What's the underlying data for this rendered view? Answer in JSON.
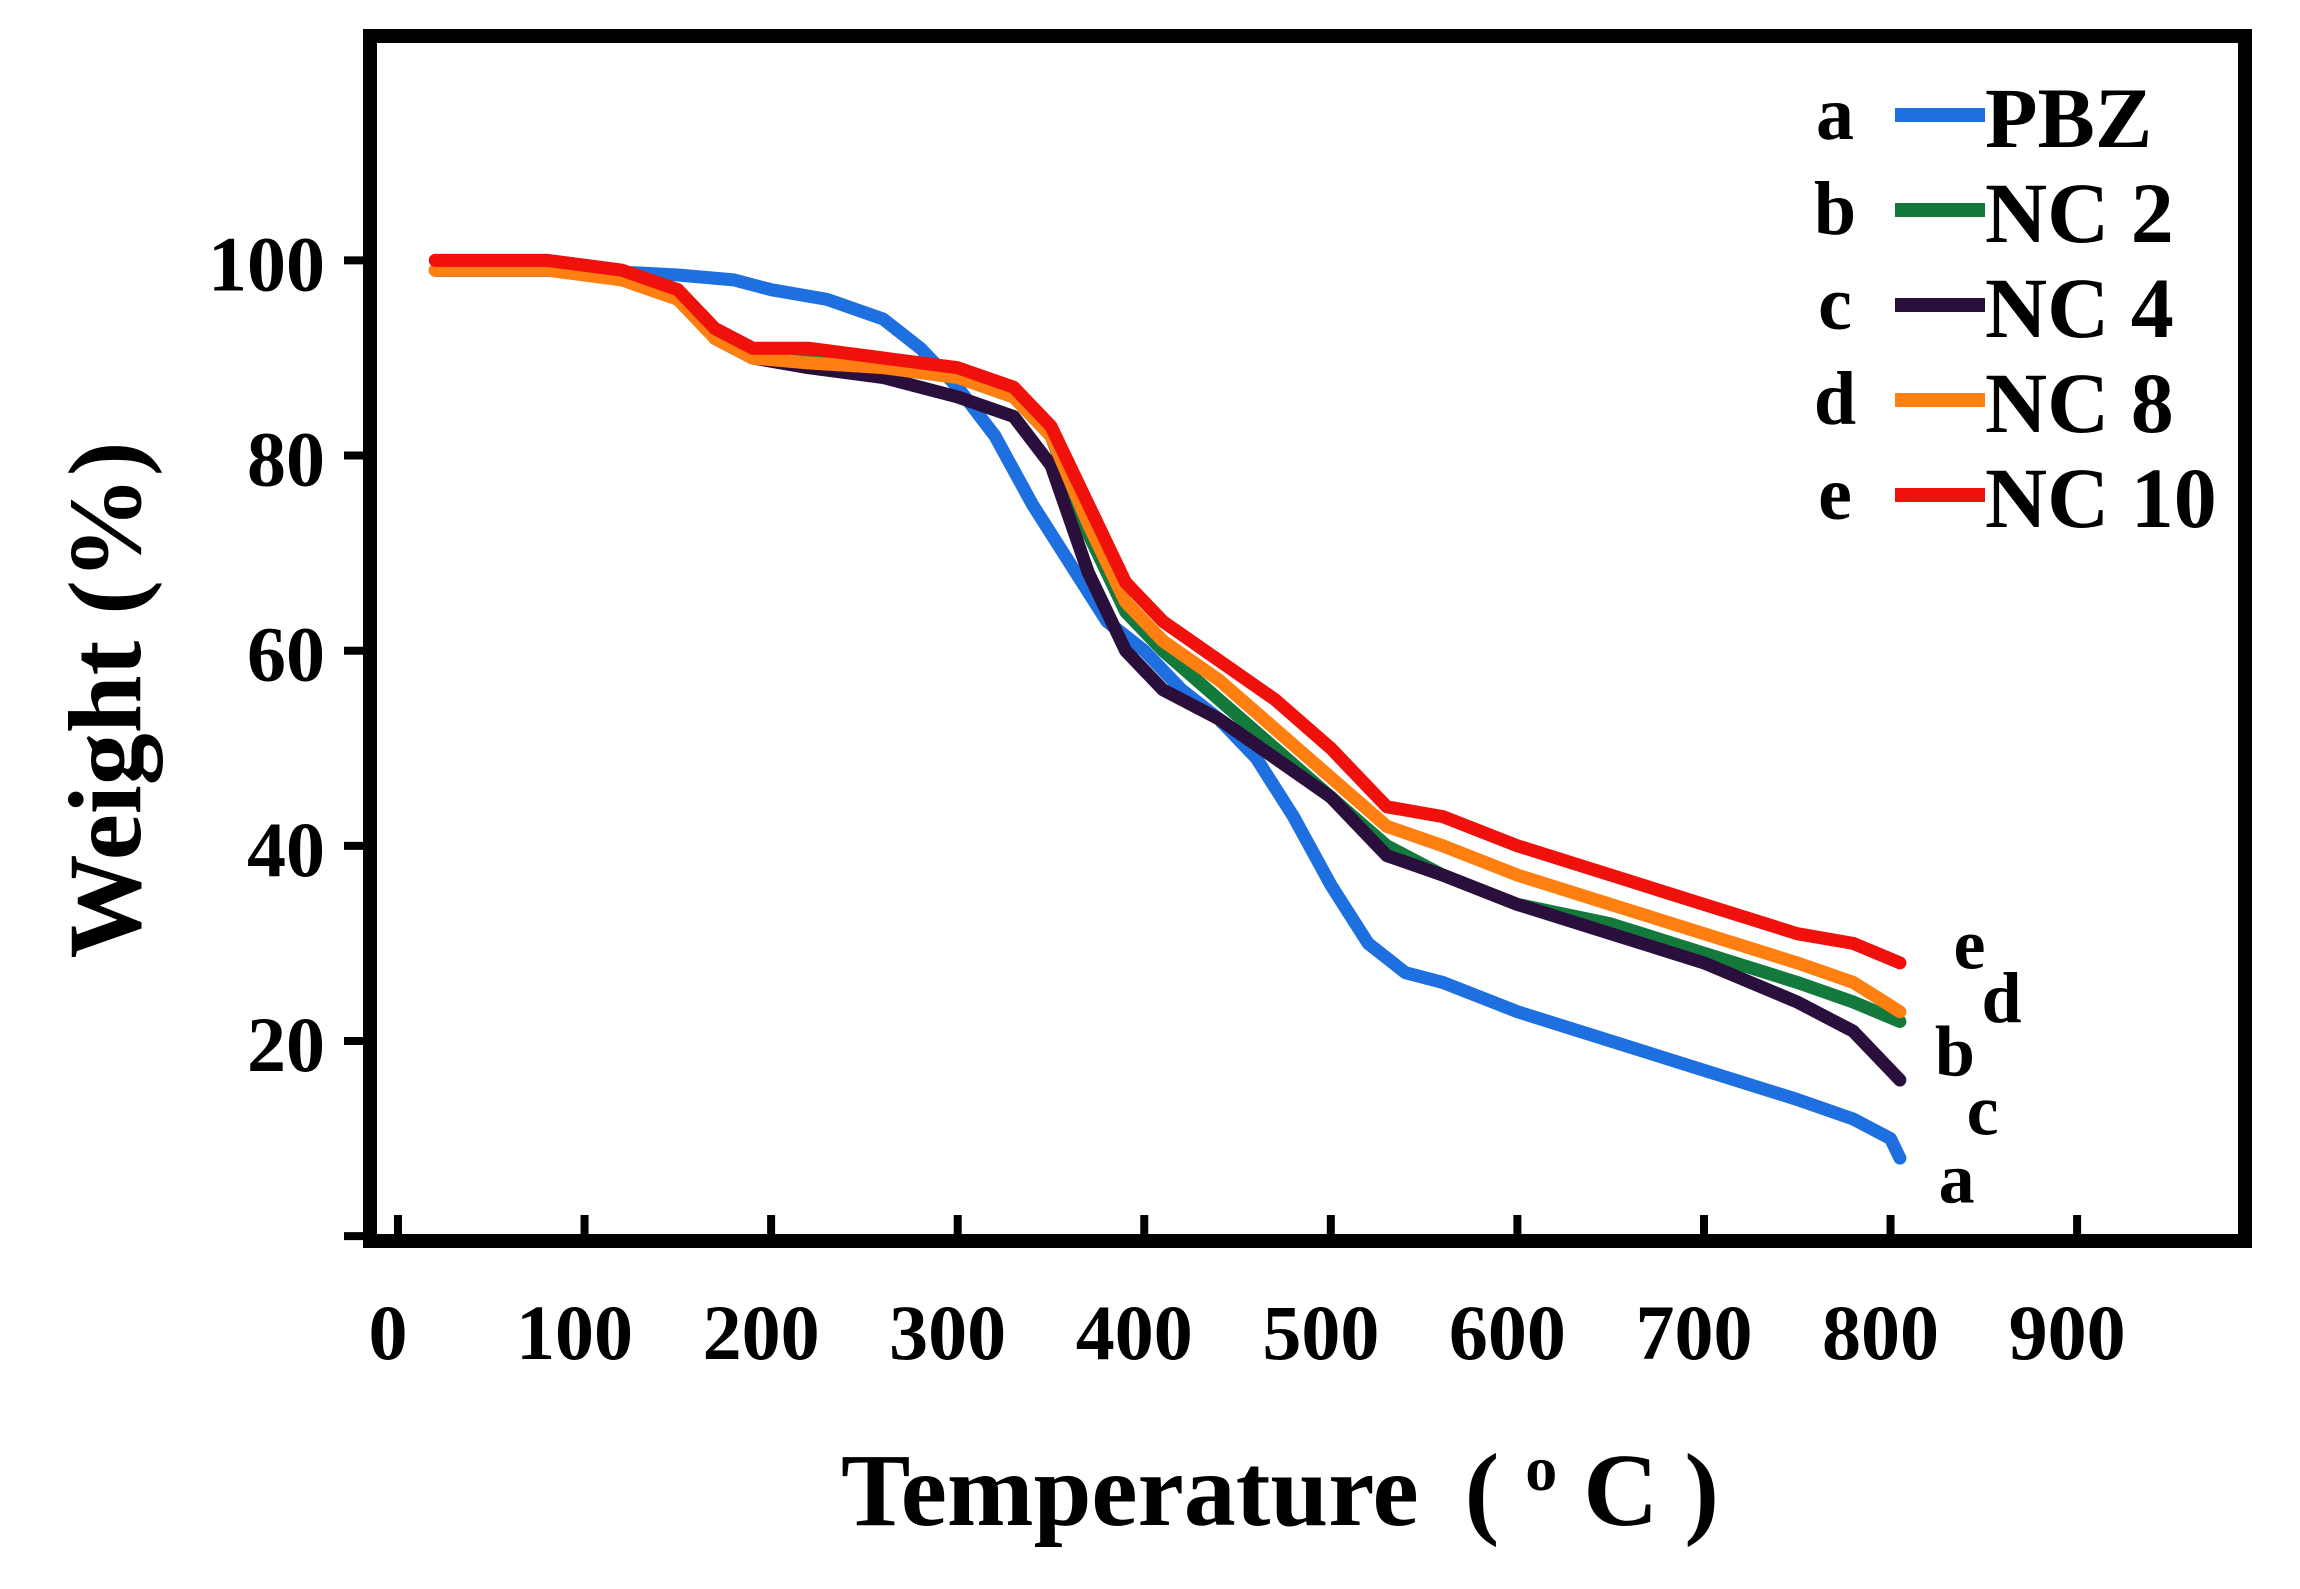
{
  "chart_data": {
    "type": "line",
    "title": "",
    "xlabel": "Temperature",
    "xlabel_unit_sup": "o",
    "xlabel_unit": "C",
    "xlabel_open": "(",
    "xlabel_close": ")",
    "ylabel": "Weight (%)",
    "xlim": [
      -15,
      990
    ],
    "ylim": [
      -0.5,
      123
    ],
    "x_ticks": [
      0,
      100,
      200,
      300,
      400,
      500,
      600,
      700,
      800,
      900
    ],
    "x_tick_labels": [
      "0",
      "100",
      "200",
      "300",
      "400",
      "500",
      "600",
      "700",
      "800",
      "900"
    ],
    "y_ticks": [
      0,
      20,
      40,
      60,
      80,
      100
    ],
    "y_tick_labels": [
      "",
      "20",
      "40",
      "60",
      "80",
      "100"
    ],
    "grid": false,
    "legend_position": "top-right",
    "series": [
      {
        "letter": "a",
        "name": "PBZ",
        "color": "#1e6fe0",
        "x": [
          20,
          60,
          100,
          150,
          180,
          200,
          230,
          260,
          280,
          300,
          320,
          340,
          360,
          380,
          400,
          420,
          440,
          460,
          480,
          500,
          520,
          540,
          560,
          600,
          650,
          700,
          750,
          780,
          800,
          805
        ],
        "y": [
          99,
          99,
          99,
          98.5,
          98,
          97,
          96,
          94,
          91,
          87,
          82,
          75,
          69,
          63,
          60,
          56,
          53,
          49,
          43,
          36,
          30,
          27,
          26,
          23,
          20,
          17,
          14,
          12,
          10,
          8
        ]
      },
      {
        "letter": "b",
        "name": "NC 2",
        "color": "#137a3c",
        "x": [
          20,
          80,
          120,
          150,
          170,
          190,
          220,
          260,
          300,
          330,
          350,
          370,
          390,
          410,
          440,
          470,
          500,
          530,
          560,
          600,
          650,
          700,
          750,
          780,
          805
        ],
        "y": [
          100,
          100,
          99,
          97,
          93,
          91,
          90,
          89,
          88,
          86,
          82,
          72,
          64,
          60,
          55,
          50,
          45,
          40,
          37,
          34,
          32,
          29,
          26,
          24,
          22
        ]
      },
      {
        "letter": "c",
        "name": "NC 4",
        "color": "#2a0f3d",
        "x": [
          20,
          80,
          120,
          150,
          170,
          190,
          220,
          260,
          300,
          330,
          350,
          370,
          390,
          410,
          440,
          470,
          500,
          530,
          560,
          600,
          650,
          700,
          750,
          780,
          805
        ],
        "y": [
          99,
          99,
          98.5,
          97,
          92,
          90,
          89,
          88,
          86,
          84,
          79,
          68,
          60,
          56,
          53,
          49,
          45,
          39,
          37,
          34,
          31,
          28,
          24,
          21,
          16
        ]
      },
      {
        "letter": "d",
        "name": "NC 8",
        "color": "#ff7f10",
        "x": [
          20,
          80,
          120,
          150,
          170,
          190,
          220,
          260,
          300,
          330,
          350,
          370,
          390,
          410,
          440,
          470,
          500,
          530,
          560,
          600,
          650,
          700,
          750,
          780,
          805
        ],
        "y": [
          99,
          99,
          98,
          96,
          92,
          90,
          89.5,
          89,
          88,
          86,
          82,
          73,
          65,
          61,
          57,
          52,
          47,
          42,
          40,
          37,
          34,
          31,
          28,
          26,
          23
        ]
      },
      {
        "letter": "e",
        "name": "NC 10",
        "color": "#f0100c",
        "x": [
          20,
          80,
          120,
          150,
          170,
          190,
          220,
          260,
          300,
          330,
          350,
          370,
          390,
          410,
          440,
          470,
          500,
          530,
          560,
          600,
          650,
          700,
          750,
          780,
          805
        ],
        "y": [
          100,
          100,
          99,
          97,
          93,
          91,
          91,
          90,
          89,
          87,
          83,
          75,
          67,
          63,
          59,
          55,
          50,
          44,
          43,
          40,
          37,
          34,
          31,
          30,
          28
        ]
      }
    ],
    "end_labels": [
      {
        "letter": "e",
        "x": 815,
        "y": 30
      },
      {
        "letter": "d",
        "x": 830,
        "y": 24.5
      },
      {
        "letter": "b",
        "x": 805,
        "y": 19
      },
      {
        "letter": "c",
        "x": 822,
        "y": 13
      },
      {
        "letter": "a",
        "x": 807,
        "y": 6
      }
    ]
  }
}
